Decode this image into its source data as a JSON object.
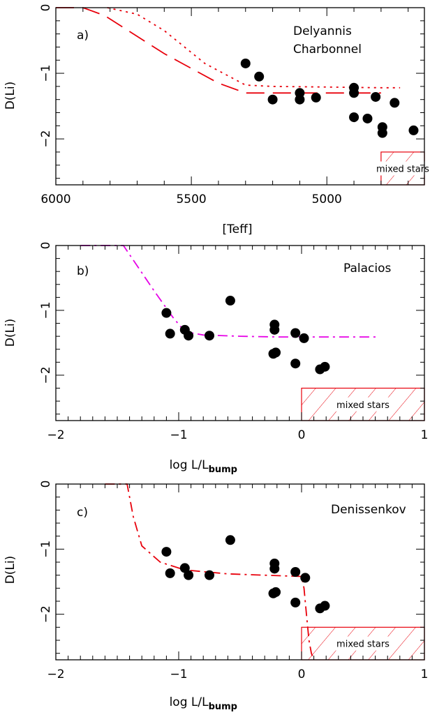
{
  "chart_data": [
    {
      "type": "scatter",
      "panel_label": "a)",
      "xlabel": "[Teff]",
      "ylabel": "D(Li)",
      "xlim": [
        6000,
        4640
      ],
      "ylim": [
        -2.7,
        0
      ],
      "x_reversed": true,
      "xticks": [
        6000,
        5500,
        5000
      ],
      "yticks": [
        0,
        -1,
        -2
      ],
      "annotations": [
        "Delyannis",
        "Charbonnel"
      ],
      "mixed_region": {
        "label": "mixed stars",
        "x": [
          4800,
          4640
        ],
        "y": [
          -2.7,
          -2.2
        ]
      },
      "points": [
        {
          "x": 5300,
          "y": -0.85
        },
        {
          "x": 5250,
          "y": -1.05
        },
        {
          "x": 5200,
          "y": -1.4
        },
        {
          "x": 5100,
          "y": -1.3
        },
        {
          "x": 5100,
          "y": -1.4
        },
        {
          "x": 5040,
          "y": -1.37
        },
        {
          "x": 4900,
          "y": -1.22
        },
        {
          "x": 4900,
          "y": -1.3
        },
        {
          "x": 4900,
          "y": -1.67
        },
        {
          "x": 4850,
          "y": -1.69
        },
        {
          "x": 4820,
          "y": -1.36
        },
        {
          "x": 4795,
          "y": -1.82
        },
        {
          "x": 4795,
          "y": -1.91
        },
        {
          "x": 4750,
          "y": -1.45
        },
        {
          "x": 4680,
          "y": -1.87
        }
      ],
      "curves": [
        {
          "style": "long-dash",
          "color": "#e8000b",
          "x": [
            6000,
            5900,
            5820,
            5600,
            5400,
            5300,
            5200,
            5000,
            4800
          ],
          "y": [
            0,
            0,
            -0.12,
            -0.7,
            -1.15,
            -1.3,
            -1.3,
            -1.3,
            -1.3
          ]
        },
        {
          "style": "dotted",
          "color": "#e8000b",
          "x": [
            5810,
            5700,
            5600,
            5450,
            5300,
            5200,
            5000,
            4800,
            4730
          ],
          "y": [
            0,
            -0.1,
            -0.35,
            -0.85,
            -1.18,
            -1.2,
            -1.21,
            -1.22,
            -1.22
          ]
        }
      ]
    },
    {
      "type": "scatter",
      "panel_label": "b)",
      "xlabel": "log L/L",
      "xlabel_sub": "bump",
      "ylabel": "D(Li)",
      "xlim": [
        -2,
        1
      ],
      "ylim": [
        -2.7,
        0
      ],
      "xticks": [
        -2,
        -1,
        0,
        1
      ],
      "yticks": [
        0,
        -1,
        -2
      ],
      "annotations": [
        "Palacios"
      ],
      "mixed_region": {
        "label": "mixed stars",
        "x": [
          0,
          1
        ],
        "y": [
          -2.7,
          -2.2
        ]
      },
      "points": [
        {
          "x": -1.1,
          "y": -1.04
        },
        {
          "x": -1.07,
          "y": -1.36
        },
        {
          "x": -0.95,
          "y": -1.3
        },
        {
          "x": -0.92,
          "y": -1.39
        },
        {
          "x": -0.75,
          "y": -1.39
        },
        {
          "x": -0.58,
          "y": -0.85
        },
        {
          "x": -0.22,
          "y": -1.22
        },
        {
          "x": -0.22,
          "y": -1.3
        },
        {
          "x": -0.23,
          "y": -1.67
        },
        {
          "x": -0.21,
          "y": -1.65
        },
        {
          "x": -0.05,
          "y": -1.35
        },
        {
          "x": -0.05,
          "y": -1.82
        },
        {
          "x": 0.02,
          "y": -1.43
        },
        {
          "x": 0.15,
          "y": -1.91
        },
        {
          "x": 0.19,
          "y": -1.87
        }
      ],
      "curves": [
        {
          "style": "dash-dot",
          "color": "#e600e6",
          "x": [
            -1.8,
            -1.45,
            -1.35,
            -1.2,
            -1.05,
            -0.95,
            -0.8,
            -0.5,
            -0.2,
            0,
            0.3,
            0.63
          ],
          "y": [
            0,
            0,
            -0.28,
            -0.7,
            -1.1,
            -1.33,
            -1.38,
            -1.4,
            -1.41,
            -1.41,
            -1.41,
            -1.41
          ]
        }
      ]
    },
    {
      "type": "scatter",
      "panel_label": "c)",
      "xlabel": "log L/L",
      "xlabel_sub": "bump",
      "ylabel": "D(Li)",
      "xlim": [
        -2,
        1
      ],
      "ylim": [
        -2.7,
        0
      ],
      "xticks": [
        -2,
        -1,
        0,
        1
      ],
      "yticks": [
        0,
        -1,
        -2
      ],
      "annotations": [
        "Denissenkov"
      ],
      "mixed_region": {
        "label": "mixed stars",
        "x": [
          0,
          1
        ],
        "y": [
          -2.7,
          -2.2
        ]
      },
      "points": [
        {
          "x": -1.1,
          "y": -1.04
        },
        {
          "x": -1.07,
          "y": -1.37
        },
        {
          "x": -0.95,
          "y": -1.29
        },
        {
          "x": -0.92,
          "y": -1.4
        },
        {
          "x": -0.75,
          "y": -1.4
        },
        {
          "x": -0.58,
          "y": -0.86
        },
        {
          "x": -0.22,
          "y": -1.22
        },
        {
          "x": -0.22,
          "y": -1.3
        },
        {
          "x": -0.23,
          "y": -1.68
        },
        {
          "x": -0.21,
          "y": -1.66
        },
        {
          "x": -0.05,
          "y": -1.35
        },
        {
          "x": -0.05,
          "y": -1.82
        },
        {
          "x": 0.03,
          "y": -1.44
        },
        {
          "x": 0.15,
          "y": -1.91
        },
        {
          "x": 0.19,
          "y": -1.87
        }
      ],
      "curves": [
        {
          "style": "dash-dot",
          "color": "#e8000b",
          "x": [
            -1.6,
            -1.42,
            -1.37,
            -1.3,
            -1.15,
            -0.95,
            -0.6,
            -0.3,
            0,
            0.02,
            0.04,
            0.06,
            0.08,
            0.1
          ],
          "y": [
            0,
            0,
            -0.5,
            -0.95,
            -1.2,
            -1.32,
            -1.38,
            -1.4,
            -1.42,
            -1.6,
            -2.0,
            -2.4,
            -2.6,
            -2.7
          ]
        }
      ]
    }
  ]
}
